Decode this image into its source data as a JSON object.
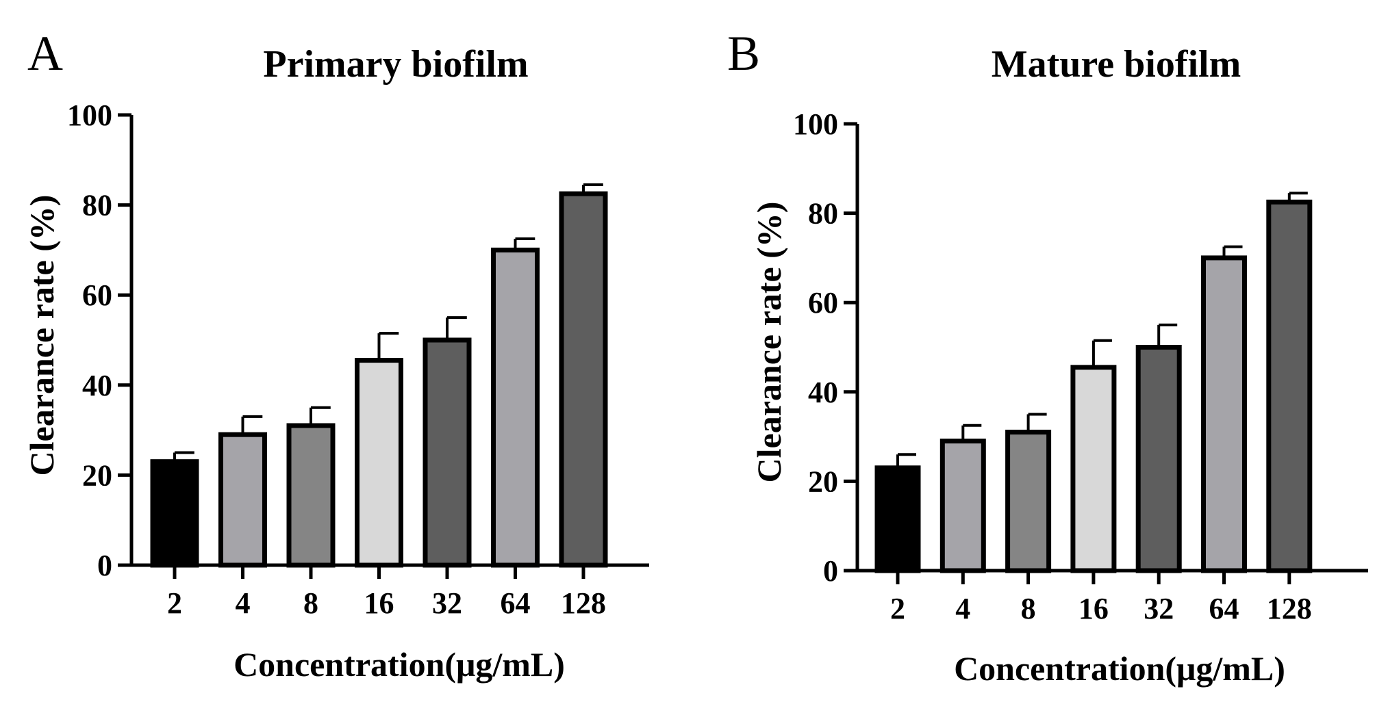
{
  "chart_data": [
    {
      "panel": "A",
      "type": "bar",
      "title": "Primary biofilm",
      "xlabel": "Concentration(μg/mL)",
      "ylabel": "Clearance rate (%)",
      "ylim": [
        0,
        100
      ],
      "yticks": [
        0,
        20,
        40,
        60,
        80,
        100
      ],
      "categories": [
        "2",
        "4",
        "8",
        "16",
        "32",
        "64",
        "128"
      ],
      "values": [
        23,
        29,
        31,
        45.5,
        50,
        70,
        82.5
      ],
      "errors": [
        2,
        4,
        4,
        6,
        5,
        2.5,
        2
      ],
      "bar_colors": [
        "#000000",
        "#a5a4a9",
        "#858585",
        "#d8d8d8",
        "#5e5e5e",
        "#a5a4a9",
        "#5e5e5e"
      ]
    },
    {
      "panel": "B",
      "type": "bar",
      "title": "Mature biofilm",
      "xlabel": "Concentration(μg/mL)",
      "ylabel": "Clearance rate (%)",
      "ylim": [
        0,
        100
      ],
      "yticks": [
        0,
        20,
        40,
        60,
        80,
        100
      ],
      "categories": [
        "2",
        "4",
        "8",
        "16",
        "32",
        "64",
        "128"
      ],
      "values": [
        23,
        29,
        31,
        45.5,
        50,
        70,
        82.5
      ],
      "errors": [
        3,
        3.5,
        4,
        6,
        5,
        2.5,
        2
      ],
      "bar_colors": [
        "#000000",
        "#a5a4a9",
        "#858585",
        "#d8d8d8",
        "#5e5e5e",
        "#a5a4a9",
        "#5e5e5e"
      ]
    }
  ]
}
